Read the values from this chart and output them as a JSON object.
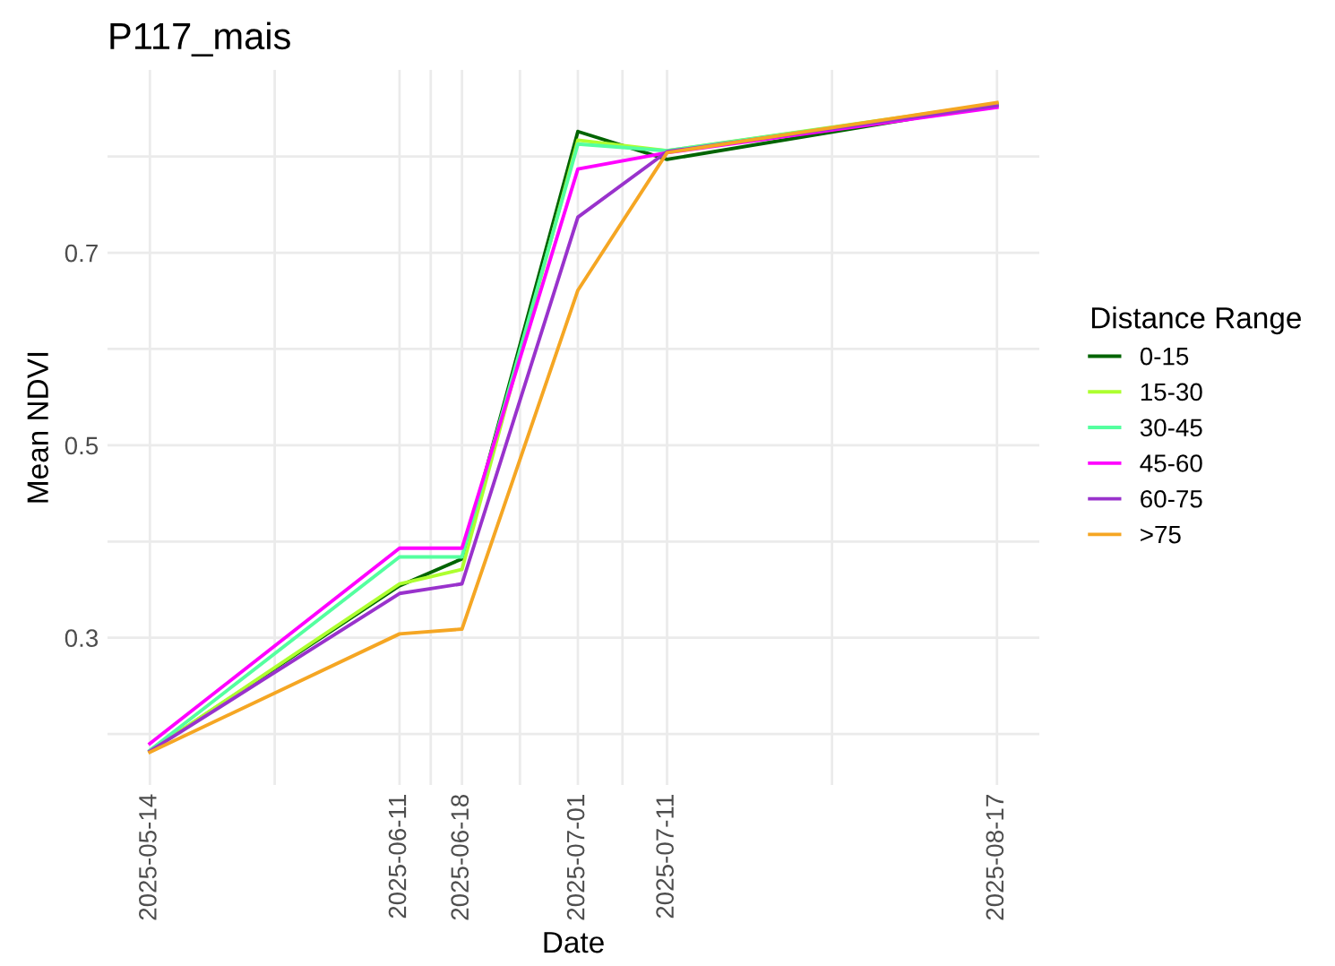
{
  "chart_data": {
    "type": "line",
    "title": "P117_mais",
    "xlabel": "Date",
    "ylabel": "Mean NDVI",
    "legend_title": "Distance Range",
    "x": [
      "2025-05-14",
      "2025-06-11",
      "2025-06-18",
      "2025-07-01",
      "2025-07-11",
      "2025-08-17"
    ],
    "series": [
      {
        "name": "0-15",
        "color": "#006400",
        "values": [
          0.182,
          0.354,
          0.382,
          0.826,
          0.797,
          0.854
        ]
      },
      {
        "name": "15-30",
        "color": "#adff2f",
        "values": [
          0.182,
          0.356,
          0.371,
          0.817,
          0.806,
          0.855
        ]
      },
      {
        "name": "30-45",
        "color": "#54ff9f",
        "values": [
          0.183,
          0.384,
          0.384,
          0.813,
          0.806,
          0.854
        ]
      },
      {
        "name": "45-60",
        "color": "#ff00ff",
        "values": [
          0.19,
          0.393,
          0.393,
          0.787,
          0.804,
          0.851
        ]
      },
      {
        "name": "60-75",
        "color": "#9932cc",
        "values": [
          0.182,
          0.346,
          0.356,
          0.737,
          0.805,
          0.853
        ]
      },
      {
        "name": ">75",
        "color": "#f5a623",
        "values": [
          0.181,
          0.304,
          0.309,
          0.661,
          0.804,
          0.856
        ]
      }
    ],
    "xlim": [
      "2025-05-09T06:00",
      "2025-08-21T18:00"
    ],
    "xticks": [
      {
        "value": "2025-05-14",
        "label": "2025-05-14"
      },
      {
        "value": "2025-05-28",
        "label": null
      },
      {
        "value": "2025-06-11",
        "label": "2025-06-11"
      },
      {
        "value": "2025-06-14T12:00",
        "label": null
      },
      {
        "value": "2025-06-18",
        "label": "2025-06-18"
      },
      {
        "value": "2025-06-24T12:00",
        "label": null
      },
      {
        "value": "2025-07-01",
        "label": "2025-07-01"
      },
      {
        "value": "2025-07-06",
        "label": null
      },
      {
        "value": "2025-07-11",
        "label": "2025-07-11"
      },
      {
        "value": "2025-07-29T12:00",
        "label": null
      },
      {
        "value": "2025-08-17",
        "label": "2025-08-17"
      }
    ],
    "ylim": [
      0.147,
      0.89
    ],
    "yticks": [
      {
        "value": 0.2,
        "label": null
      },
      0.3,
      {
        "value": 0.4,
        "label": null
      },
      0.5,
      {
        "value": 0.6,
        "label": null
      },
      0.7,
      {
        "value": 0.8,
        "label": null
      }
    ],
    "grid": true,
    "legend": "right",
    "marker": "none",
    "line_style": "solid"
  }
}
